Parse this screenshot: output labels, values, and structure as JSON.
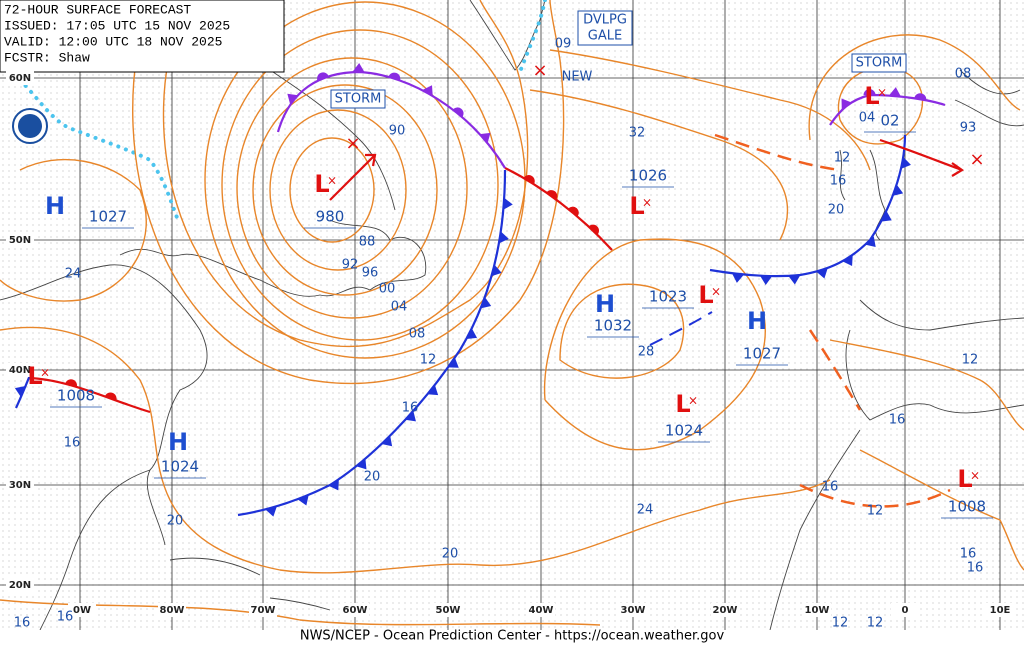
{
  "header": {
    "lines": [
      "72-HOUR SURFACE FORECAST",
      "ISSUED: 17:05 UTC 15 NOV 2025",
      "VALID: 12:00 UTC 18 NOV 2025",
      "FCSTR: Shaw"
    ]
  },
  "footer": "NWS/NCEP - Ocean Prediction Center - https://ocean.weather.gov",
  "lat_labels": [
    "60N",
    "50N",
    "40N",
    "30N",
    "20N"
  ],
  "lon_labels": [
    "0W",
    "80W",
    "70W",
    "60W",
    "50W",
    "40W",
    "30W",
    "20W",
    "10W",
    "0",
    "10E"
  ],
  "centers": [
    {
      "symbol": "H",
      "pressure": "1027"
    },
    {
      "symbol": "L",
      "pressure": "980"
    },
    {
      "symbol": "H",
      "pressure": "1024"
    },
    {
      "symbol": "L",
      "pressure": "1008"
    },
    {
      "symbol": "H",
      "pressure": "1032"
    },
    {
      "symbol": "L",
      "pressure": "1023"
    },
    {
      "symbol": "H",
      "pressure": "1027"
    },
    {
      "symbol": "L",
      "pressure": "1024"
    },
    {
      "symbol": "L",
      "pressure": "1026"
    },
    {
      "symbol": "L",
      "pressure": "02"
    },
    {
      "symbol": "L",
      "pressure": "1008"
    }
  ],
  "boxes": [
    [
      "STORM"
    ],
    [
      "STORM"
    ],
    [
      "DVLPG",
      "GALE"
    ]
  ],
  "notes": [
    "NEW"
  ],
  "isobar_labels": [
    "09",
    "90",
    "88",
    "92",
    "96",
    "00",
    "04",
    "08",
    "12",
    "16",
    "20",
    "24",
    "16",
    "20",
    "20",
    "24",
    "28",
    "32",
    "12",
    "16",
    "20",
    "04",
    "93",
    "08",
    "12",
    "16",
    "16",
    "12",
    "16",
    "16",
    "16",
    "16",
    "12",
    "12"
  ]
}
